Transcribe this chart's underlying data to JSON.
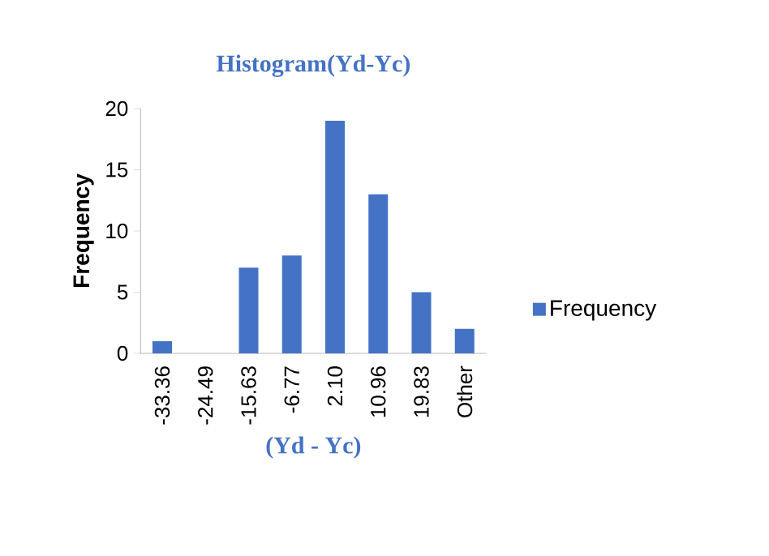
{
  "chart_data": {
    "type": "bar",
    "title": "Histogram(Yd-Yc)",
    "xlabel": "(Yd - Yc)",
    "ylabel": "Frequency",
    "categories": [
      "-33.36",
      "-24.49",
      "-15.63",
      "-6.77",
      "2.10",
      "10.96",
      "19.83",
      "Other"
    ],
    "series": [
      {
        "name": "Frequency",
        "color": "#4472c4",
        "values": [
          1,
          0,
          7,
          8,
          19,
          13,
          5,
          2
        ]
      }
    ],
    "ylim": [
      0,
      20
    ],
    "yticks": [
      0,
      5,
      10,
      15,
      20
    ],
    "grid": false,
    "legend": "right"
  }
}
